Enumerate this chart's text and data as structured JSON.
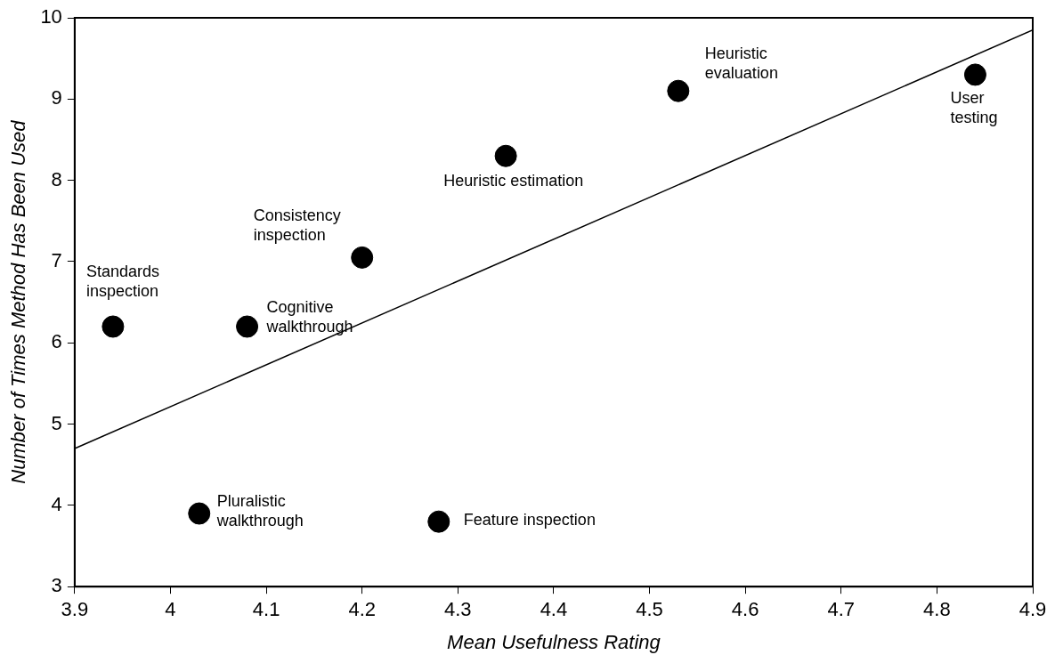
{
  "chart_data": {
    "type": "scatter",
    "xlabel": "Mean Usefulness Rating",
    "ylabel": "Number of Times Method Has Been Used",
    "series": [
      {
        "color": "#000000",
        "marker": "circle",
        "x": [
          3.94,
          4.08,
          4.03,
          4.2,
          4.35,
          4.53,
          4.84,
          4.28
        ],
        "values": [
          6.2,
          6.2,
          3.9,
          7.05,
          8.3,
          9.1,
          9.3,
          3.8
        ]
      },
      {
        "type": "line",
        "color": "#000000",
        "marker": "none",
        "x": [
          3.9,
          4.9
        ],
        "values": [
          4.7,
          9.85
        ]
      }
    ],
    "annotations": [
      {
        "text": "Standards inspection",
        "x": 3.94,
        "y": 6.2
      },
      {
        "text": "Cognitive walkthrough",
        "x": 4.08,
        "y": 6.2
      },
      {
        "text": "Pluralistic walkthrough",
        "x": 4.03,
        "y": 3.9
      },
      {
        "text": "Consistency inspection",
        "x": 4.2,
        "y": 7.05
      },
      {
        "text": "Heuristic estimation",
        "x": 4.35,
        "y": 8.3
      },
      {
        "text": "Heuristic evaluation",
        "x": 4.53,
        "y": 9.1
      },
      {
        "text": "User testing",
        "x": 4.84,
        "y": 9.3
      },
      {
        "text": "Feature inspection",
        "x": 4.28,
        "y": 3.8
      }
    ],
    "xlim": [
      3.9,
      4.9
    ],
    "xticks": [
      3.9,
      4,
      4.1,
      4.2,
      4.3,
      4.4,
      4.5,
      4.6,
      4.7,
      4.8,
      4.9
    ],
    "ylim": [
      3,
      10
    ],
    "yticks": [
      3,
      4,
      5,
      6,
      7,
      8,
      9,
      10
    ]
  }
}
